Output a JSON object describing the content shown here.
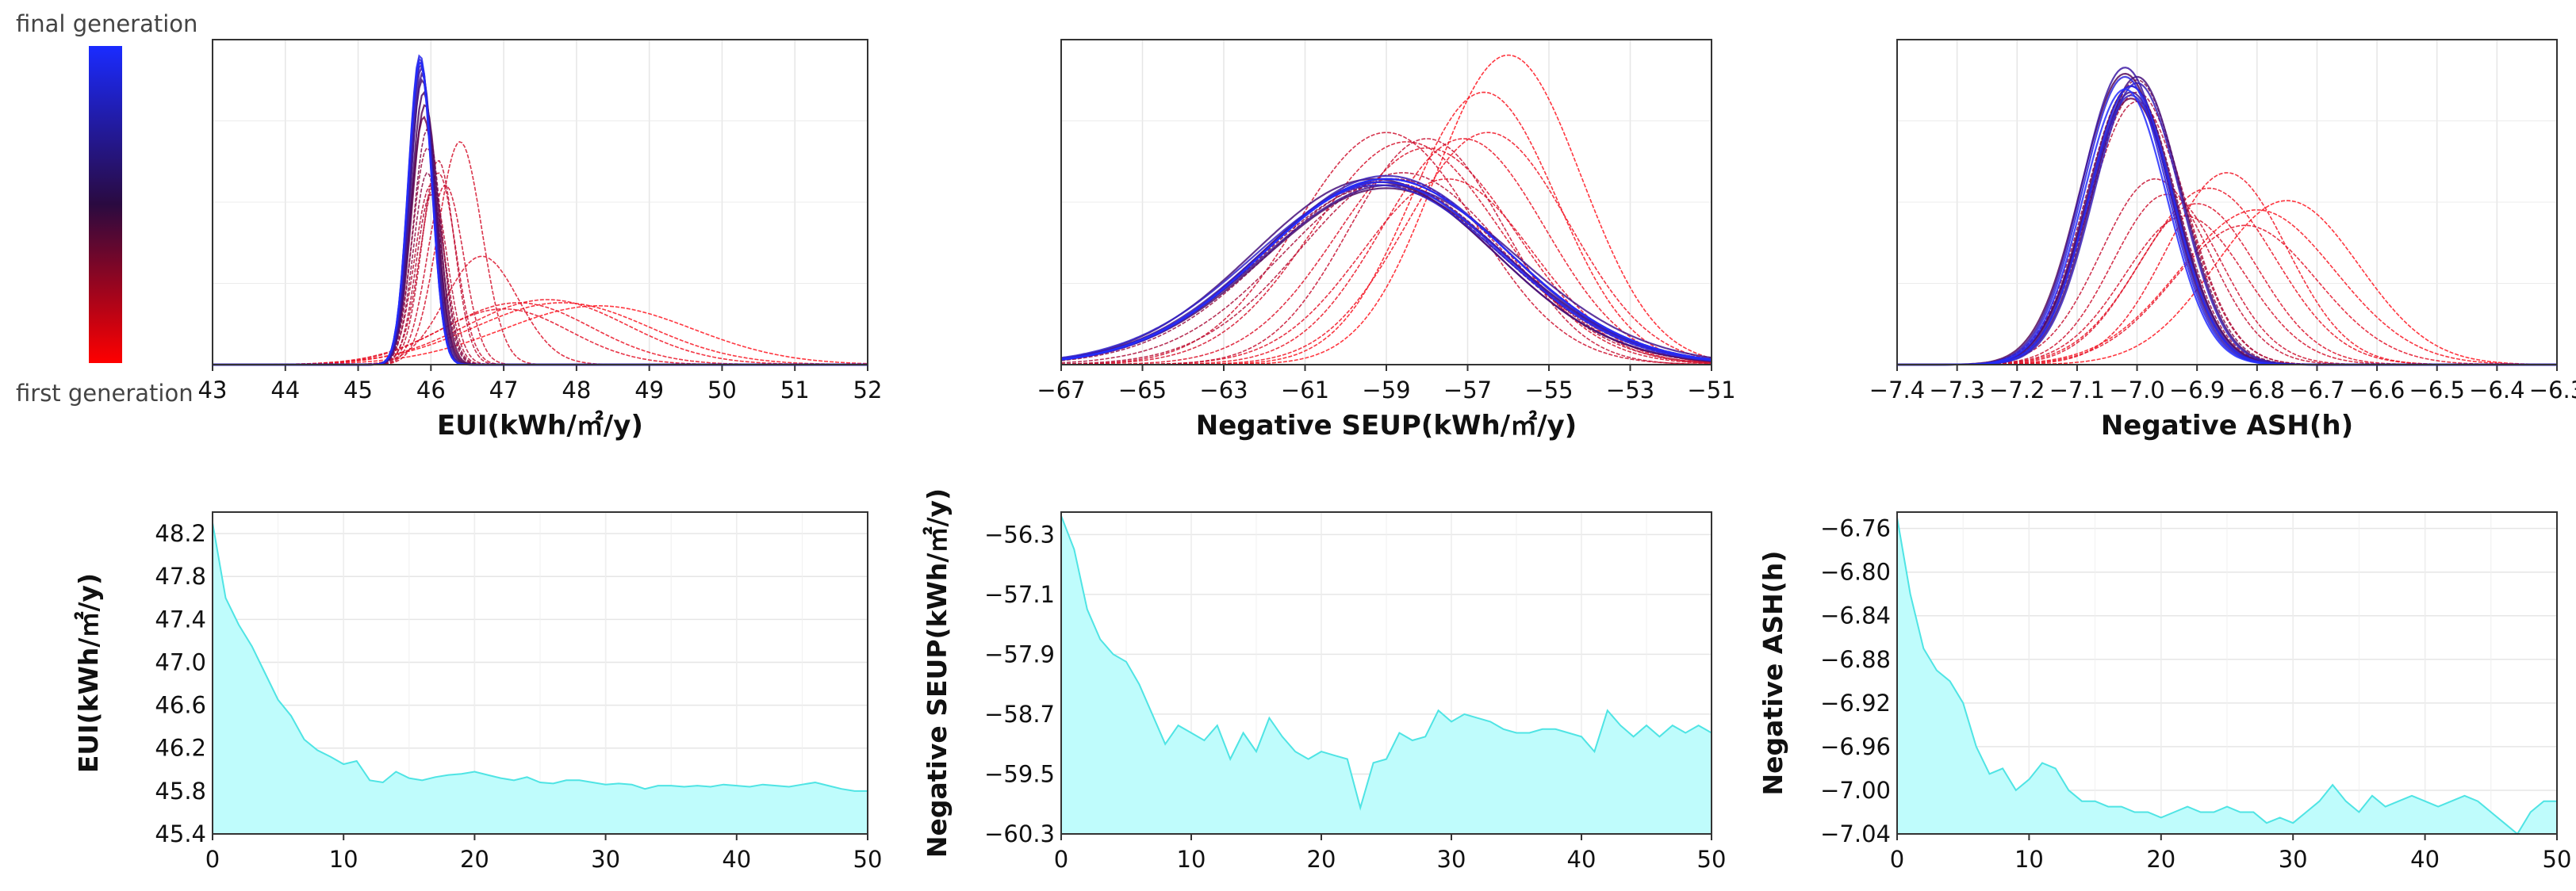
{
  "colorbar": {
    "top_label": "final generation",
    "bottom_label": "first generation",
    "top_color": "#1a2bff",
    "bottom_color": "#ff0000",
    "mid_color": "#2a0a40"
  },
  "chart_data": [
    {
      "id": "eui-dist",
      "type": "line",
      "title": "",
      "xlabel": "EUI(kWh/㎡/y)",
      "ylabel": "",
      "xlim": [
        43,
        52
      ],
      "ylim": [
        0,
        1.05
      ],
      "xticks": [
        "43",
        "44",
        "45",
        "46",
        "47",
        "48",
        "49",
        "50",
        "51",
        "52"
      ],
      "grid": true,
      "series_description": "normal-density curves per generation (gen 0 red, gen 50 blue)",
      "series": [
        {
          "gen": 0,
          "mean": 48.3,
          "sd": 1.3,
          "height": 0.19
        },
        {
          "gen": 1,
          "mean": 47.8,
          "sd": 1.2,
          "height": 0.2
        },
        {
          "gen": 2,
          "mean": 47.6,
          "sd": 1.1,
          "height": 0.21
        },
        {
          "gen": 3,
          "mean": 47.2,
          "sd": 1.0,
          "height": 0.2
        },
        {
          "gen": 4,
          "mean": 47.0,
          "sd": 0.9,
          "height": 0.18
        },
        {
          "gen": 5,
          "mean": 46.7,
          "sd": 0.5,
          "height": 0.35
        },
        {
          "gen": 6,
          "mean": 46.4,
          "sd": 0.3,
          "height": 0.72
        },
        {
          "gen": 7,
          "mean": 46.2,
          "sd": 0.25,
          "height": 0.58
        },
        {
          "gen": 8,
          "mean": 46.1,
          "sd": 0.24,
          "height": 0.62
        },
        {
          "gen": 9,
          "mean": 46.1,
          "sd": 0.22,
          "height": 0.66
        },
        {
          "gen": 10,
          "mean": 46.0,
          "sd": 0.22,
          "height": 0.58
        },
        {
          "gen": 12,
          "mean": 46.0,
          "sd": 0.2,
          "height": 0.55
        },
        {
          "gen": 14,
          "mean": 45.95,
          "sd": 0.2,
          "height": 0.7
        },
        {
          "gen": 16,
          "mean": 45.95,
          "sd": 0.19,
          "height": 0.62
        },
        {
          "gen": 18,
          "mean": 45.95,
          "sd": 0.19,
          "height": 0.76
        },
        {
          "gen": 20,
          "mean": 45.9,
          "sd": 0.18,
          "height": 0.8
        },
        {
          "gen": 23,
          "mean": 45.92,
          "sd": 0.18,
          "height": 0.84
        },
        {
          "gen": 26,
          "mean": 45.9,
          "sd": 0.17,
          "height": 0.88
        },
        {
          "gen": 29,
          "mean": 45.88,
          "sd": 0.17,
          "height": 0.92
        },
        {
          "gen": 32,
          "mean": 45.88,
          "sd": 0.16,
          "height": 0.94
        },
        {
          "gen": 35,
          "mean": 45.87,
          "sd": 0.16,
          "height": 0.96
        },
        {
          "gen": 38,
          "mean": 45.86,
          "sd": 0.16,
          "height": 0.97
        },
        {
          "gen": 41,
          "mean": 45.86,
          "sd": 0.16,
          "height": 0.98
        },
        {
          "gen": 44,
          "mean": 45.85,
          "sd": 0.16,
          "height": 0.99
        },
        {
          "gen": 47,
          "mean": 45.85,
          "sd": 0.16,
          "height": 1.0
        },
        {
          "gen": 50,
          "mean": 45.85,
          "sd": 0.16,
          "height": 0.98
        }
      ]
    },
    {
      "id": "seup-dist",
      "type": "line",
      "title": "",
      "xlabel": "Negative SEUP(kWh/㎡/y)",
      "ylabel": "",
      "xlim": [
        -67,
        -51
      ],
      "ylim": [
        0,
        1.05
      ],
      "xticks": [
        "−67",
        "−65",
        "−63",
        "−61",
        "−59",
        "−57",
        "−55",
        "−53",
        "−51"
      ],
      "grid": true,
      "series": [
        {
          "gen": 0,
          "mean": -56.0,
          "sd": 1.8,
          "height": 1.0
        },
        {
          "gen": 1,
          "mean": -56.6,
          "sd": 1.8,
          "height": 0.88
        },
        {
          "gen": 2,
          "mean": -56.5,
          "sd": 2.0,
          "height": 0.75
        },
        {
          "gen": 3,
          "mean": -57.1,
          "sd": 2.0,
          "height": 0.73
        },
        {
          "gen": 4,
          "mean": -57.5,
          "sd": 2.1,
          "height": 0.6
        },
        {
          "gen": 5,
          "mean": -58.0,
          "sd": 2.2,
          "height": 0.7
        },
        {
          "gen": 6,
          "mean": -58.5,
          "sd": 2.3,
          "height": 0.72
        },
        {
          "gen": 7,
          "mean": -59.0,
          "sd": 2.2,
          "height": 0.75
        },
        {
          "gen": 8,
          "mean": -58.0,
          "sd": 1.9,
          "height": 0.73
        },
        {
          "gen": 10,
          "mean": -58.6,
          "sd": 2.5,
          "height": 0.62
        },
        {
          "gen": 12,
          "mean": -58.8,
          "sd": 2.7,
          "height": 0.6
        },
        {
          "gen": 15,
          "mean": -59.0,
          "sd": 2.9,
          "height": 0.59
        },
        {
          "gen": 18,
          "mean": -59.1,
          "sd": 2.95,
          "height": 0.58
        },
        {
          "gen": 21,
          "mean": -59.0,
          "sd": 3.0,
          "height": 0.6
        },
        {
          "gen": 24,
          "mean": -59.2,
          "sd": 2.9,
          "height": 0.59
        },
        {
          "gen": 27,
          "mean": -59.0,
          "sd": 3.0,
          "height": 0.57
        },
        {
          "gen": 30,
          "mean": -59.3,
          "sd": 2.95,
          "height": 0.6
        },
        {
          "gen": 33,
          "mean": -58.9,
          "sd": 3.1,
          "height": 0.58
        },
        {
          "gen": 36,
          "mean": -59.1,
          "sd": 3.0,
          "height": 0.59
        },
        {
          "gen": 39,
          "mean": -59.0,
          "sd": 2.95,
          "height": 0.61
        },
        {
          "gen": 42,
          "mean": -59.2,
          "sd": 3.05,
          "height": 0.58
        },
        {
          "gen": 45,
          "mean": -59.0,
          "sd": 3.0,
          "height": 0.6
        },
        {
          "gen": 48,
          "mean": -59.1,
          "sd": 2.95,
          "height": 0.59
        },
        {
          "gen": 50,
          "mean": -59.0,
          "sd": 3.0,
          "height": 0.6
        }
      ]
    },
    {
      "id": "ash-dist",
      "type": "line",
      "title": "",
      "xlabel": "Negative  ASH(h)",
      "ylabel": "",
      "xlim": [
        -7.4,
        -6.3
      ],
      "ylim": [
        0,
        1.05
      ],
      "xticks": [
        "−7.4",
        "−7.3",
        "−7.2",
        "−7.1",
        "−7.0",
        "−6.9",
        "−6.8",
        "−6.7",
        "−6.6",
        "−6.5",
        "−6.4",
        "−6.3"
      ],
      "grid": true,
      "series": [
        {
          "gen": 0,
          "mean": -6.75,
          "sd": 0.12,
          "height": 0.53
        },
        {
          "gen": 1,
          "mean": -6.8,
          "sd": 0.13,
          "height": 0.5
        },
        {
          "gen": 2,
          "mean": -6.85,
          "sd": 0.1,
          "height": 0.62
        },
        {
          "gen": 3,
          "mean": -6.88,
          "sd": 0.11,
          "height": 0.57
        },
        {
          "gen": 4,
          "mean": -6.82,
          "sd": 0.12,
          "height": 0.45
        },
        {
          "gen": 5,
          "mean": -6.9,
          "sd": 0.1,
          "height": 0.52
        },
        {
          "gen": 6,
          "mean": -6.92,
          "sd": 0.1,
          "height": 0.48
        },
        {
          "gen": 7,
          "mean": -6.95,
          "sd": 0.09,
          "height": 0.55
        },
        {
          "gen": 8,
          "mean": -6.97,
          "sd": 0.09,
          "height": 0.6
        },
        {
          "gen": 10,
          "mean": -7.0,
          "sd": 0.08,
          "height": 0.85
        },
        {
          "gen": 12,
          "mean": -7.0,
          "sd": 0.08,
          "height": 0.88
        },
        {
          "gen": 15,
          "mean": -7.01,
          "sd": 0.075,
          "height": 0.9
        },
        {
          "gen": 18,
          "mean": -7.0,
          "sd": 0.075,
          "height": 0.92
        },
        {
          "gen": 21,
          "mean": -7.01,
          "sd": 0.074,
          "height": 0.86
        },
        {
          "gen": 24,
          "mean": -7.02,
          "sd": 0.074,
          "height": 0.94
        },
        {
          "gen": 27,
          "mean": -7.01,
          "sd": 0.073,
          "height": 0.9
        },
        {
          "gen": 30,
          "mean": -7.0,
          "sd": 0.073,
          "height": 0.93
        },
        {
          "gen": 33,
          "mean": -7.01,
          "sd": 0.072,
          "height": 0.88
        },
        {
          "gen": 36,
          "mean": -7.02,
          "sd": 0.072,
          "height": 0.96
        },
        {
          "gen": 39,
          "mean": -7.0,
          "sd": 0.072,
          "height": 0.91
        },
        {
          "gen": 42,
          "mean": -7.01,
          "sd": 0.071,
          "height": 0.87
        },
        {
          "gen": 45,
          "mean": -7.02,
          "sd": 0.071,
          "height": 0.93
        },
        {
          "gen": 48,
          "mean": -7.01,
          "sd": 0.07,
          "height": 0.9
        },
        {
          "gen": 50,
          "mean": -7.02,
          "sd": 0.07,
          "height": 0.89
        }
      ]
    },
    {
      "id": "eui-conv",
      "type": "area",
      "title": "",
      "xlabel": "",
      "ylabel": "EUI(kWh/㎡/y)",
      "xlim": [
        0,
        50
      ],
      "ylim": [
        45.4,
        48.4
      ],
      "xticks": [
        "0",
        "10",
        "20",
        "30",
        "40",
        "50"
      ],
      "yticks": [
        "45.4",
        "45.8",
        "46.2",
        "46.6",
        "47.0",
        "47.4",
        "47.8",
        "48.2"
      ],
      "ytick_values": [
        45.4,
        45.8,
        46.2,
        46.6,
        47.0,
        47.4,
        47.8,
        48.2
      ],
      "grid": true,
      "fill_color": "#bffcfc",
      "line_color": "#4fe4e4",
      "x": [
        0,
        1,
        2,
        3,
        4,
        5,
        6,
        7,
        8,
        9,
        10,
        11,
        12,
        13,
        14,
        15,
        16,
        17,
        18,
        19,
        20,
        21,
        22,
        23,
        24,
        25,
        26,
        27,
        28,
        29,
        30,
        31,
        32,
        33,
        34,
        35,
        36,
        37,
        38,
        39,
        40,
        41,
        42,
        43,
        44,
        45,
        46,
        47,
        48,
        49,
        50
      ],
      "y": [
        48.3,
        47.6,
        47.35,
        47.15,
        46.9,
        46.65,
        46.5,
        46.28,
        46.18,
        46.12,
        46.05,
        46.08,
        45.9,
        45.88,
        45.98,
        45.92,
        45.9,
        45.93,
        45.95,
        45.96,
        45.98,
        45.95,
        45.92,
        45.9,
        45.93,
        45.88,
        45.87,
        45.9,
        45.9,
        45.88,
        45.86,
        45.87,
        45.86,
        45.82,
        45.85,
        45.85,
        45.84,
        45.85,
        45.84,
        45.86,
        45.85,
        45.84,
        45.86,
        45.85,
        45.84,
        45.86,
        45.88,
        45.85,
        45.82,
        45.8,
        45.8
      ]
    },
    {
      "id": "seup-conv",
      "type": "area",
      "title": "",
      "xlabel": "",
      "ylabel": "Negative SEUP(kWh/㎡/y)",
      "xlim": [
        0,
        50
      ],
      "ylim": [
        -60.3,
        -56.0
      ],
      "xticks": [
        "0",
        "10",
        "20",
        "30",
        "40",
        "50"
      ],
      "yticks": [
        "−60.3",
        "−59.5",
        "−58.7",
        "−57.9",
        "−57.1",
        "−56.3"
      ],
      "ytick_values": [
        -60.3,
        -59.5,
        -58.7,
        -57.9,
        -57.1,
        -56.3
      ],
      "grid": true,
      "fill_color": "#bffcfc",
      "line_color": "#4fe4e4",
      "x": [
        0,
        1,
        2,
        3,
        4,
        5,
        6,
        7,
        8,
        9,
        10,
        11,
        12,
        13,
        14,
        15,
        16,
        17,
        18,
        19,
        20,
        21,
        22,
        23,
        24,
        25,
        26,
        27,
        28,
        29,
        30,
        31,
        32,
        33,
        34,
        35,
        36,
        37,
        38,
        39,
        40,
        41,
        42,
        43,
        44,
        45,
        46,
        47,
        48,
        49,
        50
      ],
      "y": [
        -56.05,
        -56.5,
        -57.3,
        -57.7,
        -57.9,
        -58.0,
        -58.3,
        -58.7,
        -59.1,
        -58.85,
        -58.95,
        -59.05,
        -58.85,
        -59.3,
        -58.95,
        -59.2,
        -58.75,
        -59.0,
        -59.2,
        -59.3,
        -59.2,
        -59.25,
        -59.3,
        -59.95,
        -59.35,
        -59.3,
        -58.95,
        -59.05,
        -59.0,
        -58.65,
        -58.8,
        -58.7,
        -58.75,
        -58.8,
        -58.9,
        -58.95,
        -58.95,
        -58.9,
        -58.9,
        -58.95,
        -59.0,
        -59.2,
        -58.65,
        -58.85,
        -59.0,
        -58.85,
        -59.0,
        -58.85,
        -58.95,
        -58.85,
        -58.95
      ]
    },
    {
      "id": "ash-conv",
      "type": "area",
      "title": "",
      "xlabel": "",
      "ylabel": "Negative  ASH(h)",
      "xlim": [
        0,
        50
      ],
      "ylim": [
        -7.04,
        -6.745
      ],
      "xticks": [
        "0",
        "10",
        "20",
        "30",
        "40",
        "50"
      ],
      "yticks": [
        "−6.76",
        "−6.80",
        "−6.84",
        "−6.88",
        "−6.92",
        "−6.96",
        "−7.00",
        "−7.04"
      ],
      "ytick_values": [
        -6.76,
        -6.8,
        -6.84,
        -6.88,
        -6.92,
        -6.96,
        -7.0,
        -7.04
      ],
      "grid": true,
      "fill_color": "#bffcfc",
      "line_color": "#4fe4e4",
      "x": [
        0,
        1,
        2,
        3,
        4,
        5,
        6,
        7,
        8,
        9,
        10,
        11,
        12,
        13,
        14,
        15,
        16,
        17,
        18,
        19,
        20,
        21,
        22,
        23,
        24,
        25,
        26,
        27,
        28,
        29,
        30,
        31,
        32,
        33,
        34,
        35,
        36,
        37,
        38,
        39,
        40,
        41,
        42,
        43,
        44,
        45,
        46,
        47,
        48,
        49,
        50
      ],
      "y": [
        -6.75,
        -6.82,
        -6.87,
        -6.89,
        -6.9,
        -6.92,
        -6.96,
        -6.985,
        -6.98,
        -7.0,
        -6.99,
        -6.975,
        -6.98,
        -7.0,
        -7.01,
        -7.01,
        -7.015,
        -7.015,
        -7.02,
        -7.02,
        -7.025,
        -7.02,
        -7.015,
        -7.02,
        -7.02,
        -7.015,
        -7.02,
        -7.02,
        -7.03,
        -7.025,
        -7.03,
        -7.02,
        -7.01,
        -6.995,
        -7.01,
        -7.02,
        -7.005,
        -7.015,
        -7.01,
        -7.005,
        -7.01,
        -7.015,
        -7.01,
        -7.005,
        -7.01,
        -7.02,
        -7.03,
        -7.04,
        -7.02,
        -7.01,
        -7.01
      ]
    }
  ]
}
